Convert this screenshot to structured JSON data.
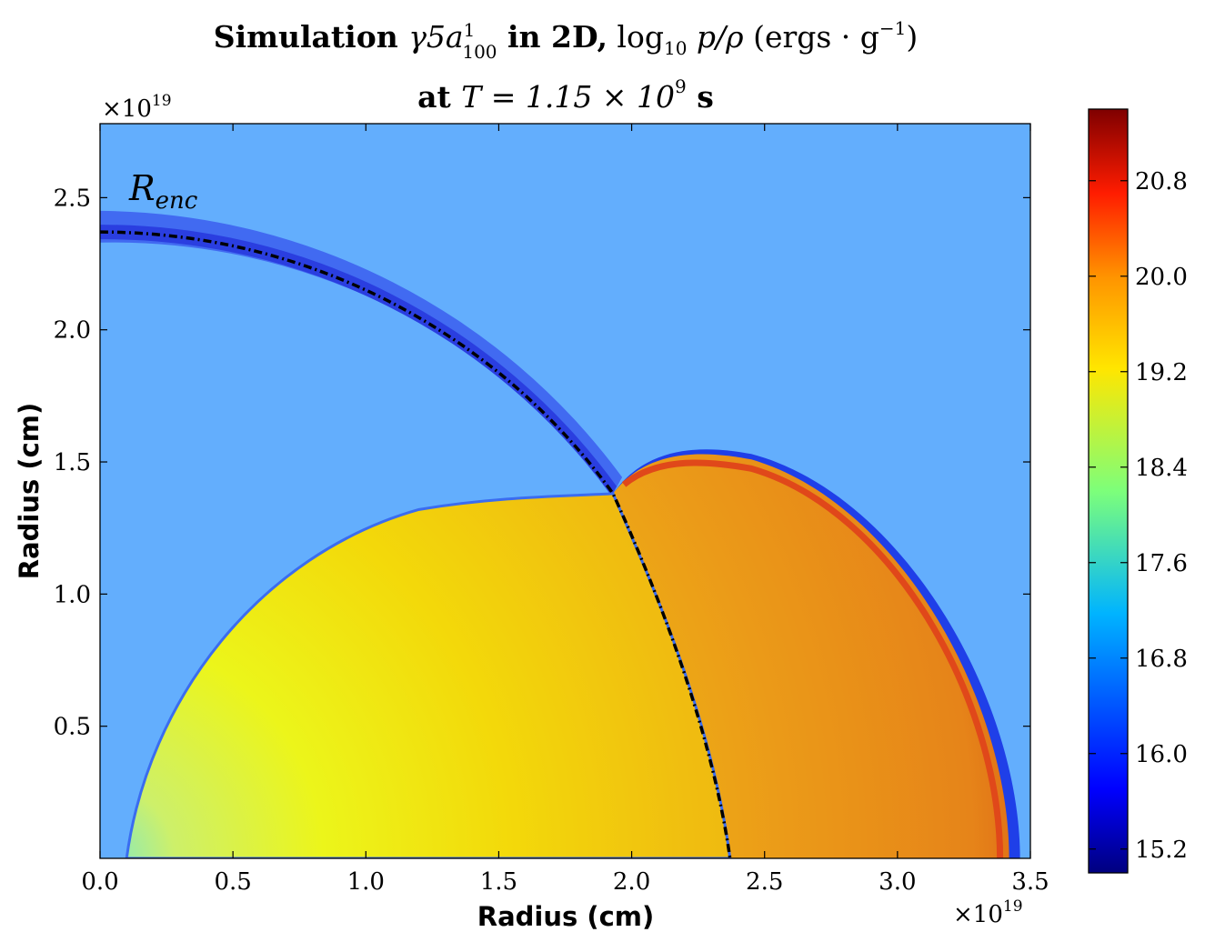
{
  "chart_data": {
    "type": "heatmap",
    "title_line1": {
      "bold_prefix": "Simulation ",
      "math_gamma": "γ5",
      "math_a": "a",
      "frac_num": "1",
      "frac_den": "100",
      "bold_mid": " in 2D,",
      "log": " log",
      "log_sub": "10",
      "math_tail": " p/ρ",
      "units_open": " (ergs · g",
      "units_exp": "−1",
      "units_close": ")"
    },
    "title_line2": {
      "bold_prefix": "at ",
      "math": "T = 1.15 × 10",
      "exp": "9",
      "unit": " s"
    },
    "xlabel": "Radius (cm)",
    "ylabel": "Radius (cm)",
    "x_scale_label": {
      "base": "×10",
      "exp": "19"
    },
    "y_scale_label": {
      "base": "×10",
      "exp": "19"
    },
    "xlim": [
      0.0,
      3.5
    ],
    "ylim": [
      0.0,
      2.78
    ],
    "x_ticks": [
      "0.0",
      "0.5",
      "1.0",
      "1.5",
      "2.0",
      "2.5",
      "3.0",
      "3.5"
    ],
    "y_ticks": [
      "0.5",
      "1.0",
      "1.5",
      "2.0",
      "2.5"
    ],
    "x_tick_values": [
      0.0,
      0.5,
      1.0,
      1.5,
      2.0,
      2.5,
      3.0,
      3.5
    ],
    "y_tick_values": [
      0.5,
      1.0,
      1.5,
      2.0,
      2.5
    ],
    "colorbar": {
      "range": [
        15.0,
        21.4
      ],
      "ticks": [
        "15.2",
        "16.0",
        "16.8",
        "17.6",
        "18.4",
        "19.2",
        "20.0",
        "20.8"
      ],
      "tick_values": [
        15.2,
        16.0,
        16.8,
        17.6,
        18.4,
        19.2,
        20.0,
        20.8
      ],
      "colormap": "jet"
    },
    "annotation": {
      "base": "R",
      "sub": "enc"
    },
    "regions": {
      "background_value": 16.7,
      "shell_upper_outer_radius": 2.45,
      "shell_upper_inner_radius": 2.33,
      "shell_value": 16.2,
      "enclosure_radius": 2.37,
      "inner_bubble_value": 19.4,
      "outer_bubble_value": 20.2,
      "outer_bubble_edge": 3.42,
      "junction_point": [
        1.93,
        1.38
      ]
    }
  }
}
